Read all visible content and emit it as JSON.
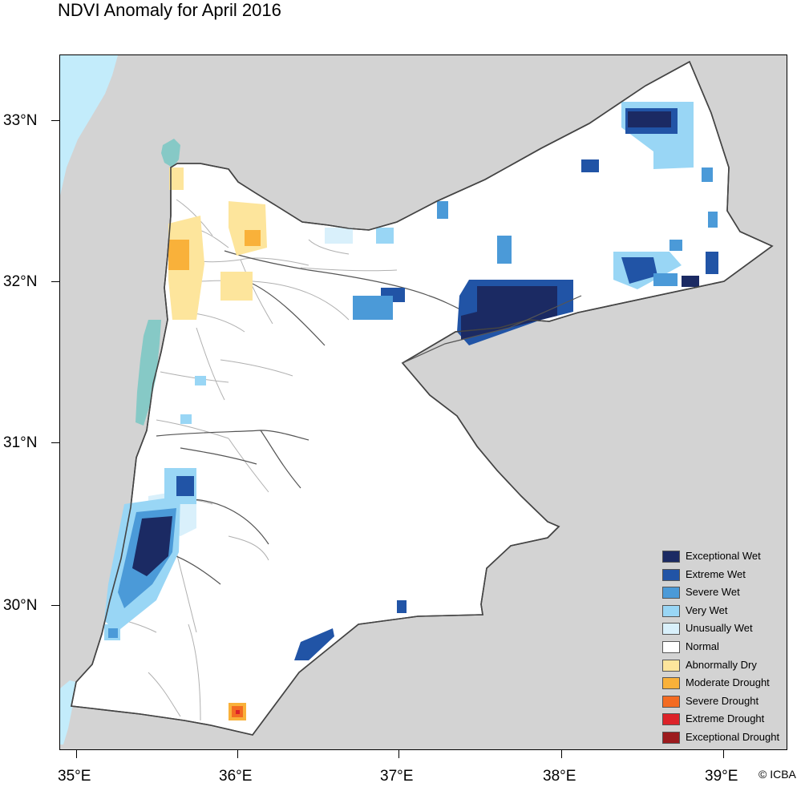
{
  "title": "NDVI Anomaly for April 2016",
  "credit": "© ICBA",
  "axes": {
    "y_ticks": [
      "33°N",
      "32°N",
      "31°N",
      "30°N"
    ],
    "x_ticks": [
      "35°E",
      "36°E",
      "37°E",
      "38°E",
      "39°E"
    ]
  },
  "legend": {
    "items": [
      {
        "label": "Exceptional Wet",
        "color": "#1b2a63"
      },
      {
        "label": "Extreme Wet",
        "color": "#2154a6"
      },
      {
        "label": "Severe Wet",
        "color": "#4b9ad8"
      },
      {
        "label": "Very Wet",
        "color": "#99d6f5"
      },
      {
        "label": "Unusually Wet",
        "color": "#d9f0fb"
      },
      {
        "label": "Normal",
        "color": "#ffffff"
      },
      {
        "label": "Abnormally Dry",
        "color": "#fde59c"
      },
      {
        "label": "Moderate Drought",
        "color": "#f9b13a"
      },
      {
        "label": "Severe Drought",
        "color": "#f36b22"
      },
      {
        "label": "Extreme Drought",
        "color": "#dc2229"
      },
      {
        "label": "Exceptional Drought",
        "color": "#9c1b1e"
      }
    ]
  },
  "colors": {
    "background": "#d3d3d3",
    "sea": "#c3ecfb",
    "dead_sea": "#86c9c6",
    "border": "#444444",
    "governorate_lines": "#b0b0b0"
  }
}
